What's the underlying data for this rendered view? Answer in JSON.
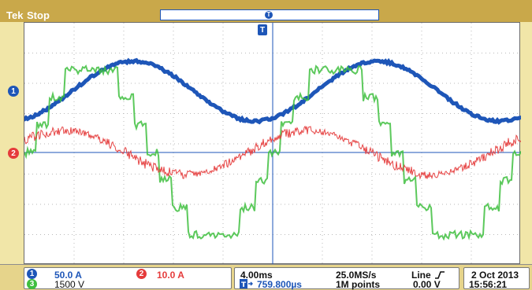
{
  "header": {
    "brand": "Tek",
    "state": "Stop"
  },
  "markers": {
    "trigger_top": "T",
    "trigger_mid": "T",
    "ch1_marker": "1",
    "ch2_marker": "2"
  },
  "channels": {
    "ch1": {
      "tag": "1",
      "scale": "50.0 A",
      "color": "#1e56b8"
    },
    "ch2": {
      "tag": "2",
      "scale": "10.0 A",
      "color": "#e53b3b"
    },
    "ch3": {
      "tag": "3",
      "scale": "1500 V",
      "color": "#3fbf3f"
    }
  },
  "timebase": {
    "time_per_div": "4.00ms",
    "sample_rate": "25.0MS/s",
    "trigger_offset": "759.800µs",
    "record_length": "1M points"
  },
  "trigger": {
    "mode": "Line",
    "level": "0.00 V"
  },
  "datetime": {
    "date": "2 Oct 2013",
    "time": "15:56:21"
  },
  "icons": {
    "trigger_symbol": "trigger-icon",
    "slope_symbol": "rising-edge-icon"
  }
}
